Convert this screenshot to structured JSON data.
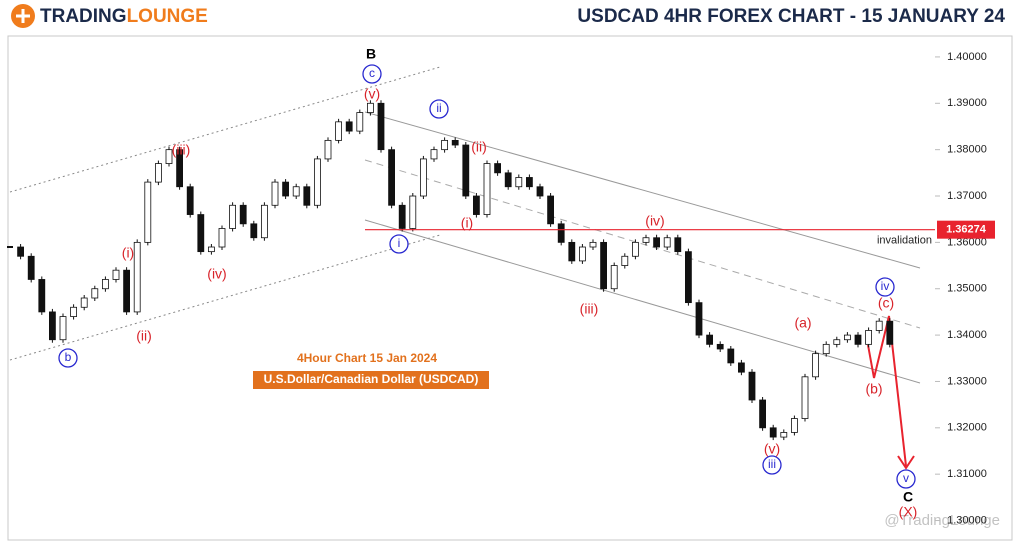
{
  "header": {
    "logo_a": "TRADING",
    "logo_b": "LOUNGE",
    "title": "USDCAD 4HR FOREX CHART - 15 JANUARY 24"
  },
  "chart_data": {
    "type": "candlestick",
    "subtitle": "4Hour Chart 15 Jan 2024",
    "instrument": "U.S.Dollar/Canadian Dollar (USDCAD)",
    "values": [
      1.359,
      1.357,
      1.352,
      1.345,
      1.339,
      1.344,
      1.346,
      1.348,
      1.35,
      1.352,
      1.354,
      1.345,
      1.36,
      1.373,
      1.377,
      1.38,
      1.372,
      1.366,
      1.358,
      1.359,
      1.363,
      1.368,
      1.364,
      1.361,
      1.368,
      1.373,
      1.37,
      1.372,
      1.368,
      1.378,
      1.382,
      1.386,
      1.384,
      1.388,
      1.39,
      1.38,
      1.368,
      1.363,
      1.37,
      1.378,
      1.38,
      1.382,
      1.381,
      1.37,
      1.366,
      1.377,
      1.375,
      1.372,
      1.374,
      1.372,
      1.37,
      1.364,
      1.36,
      1.356,
      1.359,
      1.36,
      1.35,
      1.355,
      1.357,
      1.36,
      1.361,
      1.359,
      1.361,
      1.358,
      1.347,
      1.34,
      1.338,
      1.337,
      1.334,
      1.332,
      1.326,
      1.32,
      1.318,
      1.319,
      1.322,
      1.331,
      1.336,
      1.338,
      1.339,
      1.34,
      1.338,
      1.341,
      1.343,
      1.338
    ],
    "up_color": "#ffffff",
    "down_color": "#111111",
    "ylim": [
      1.2958,
      1.4043
    ],
    "yticks": [
      {
        "value": 1.3,
        "label": "1.30000"
      },
      {
        "value": 1.31,
        "label": "1.31000"
      },
      {
        "value": 1.32,
        "label": "1.32000"
      },
      {
        "value": 1.33,
        "label": "1.33000"
      },
      {
        "value": 1.34,
        "label": "1.34000"
      },
      {
        "value": 1.35,
        "label": "1.35000"
      },
      {
        "value": 1.36,
        "label": "1.36000"
      },
      {
        "value": 1.37,
        "label": "1.37000"
      },
      {
        "value": 1.38,
        "label": "1.38000"
      },
      {
        "value": 1.39,
        "label": "1.39000"
      },
      {
        "value": 1.4,
        "label": "1.40000"
      }
    ],
    "price_line": {
      "value": 1.36274,
      "note": "invalidation",
      "color": "#e8232e"
    },
    "annotations": [
      {
        "text": "B",
        "color": "#000000",
        "circled": false
      },
      {
        "text": "c",
        "color": "#2a2ad0",
        "circled": true
      },
      {
        "text": "(v)",
        "color": "#d8232a",
        "circled": false
      },
      {
        "text": "(iii)",
        "color": "#d8232a",
        "circled": false
      },
      {
        "text": "(i)",
        "color": "#d8232a",
        "circled": false
      },
      {
        "text": "(iv)",
        "color": "#d8232a",
        "circled": false
      },
      {
        "text": "(ii)",
        "color": "#d8232a",
        "circled": false
      },
      {
        "text": "b",
        "color": "#2a2ad0",
        "circled": true
      },
      {
        "text": "ii",
        "color": "#2a2ad0",
        "circled": true
      },
      {
        "text": "(ii)",
        "color": "#d8232a",
        "circled": false
      },
      {
        "text": "(i)",
        "color": "#d8232a",
        "circled": false
      },
      {
        "text": "i",
        "color": "#2a2ad0",
        "circled": true
      },
      {
        "text": "(iv)",
        "color": "#d8232a",
        "circled": false
      },
      {
        "text": "(iii)",
        "color": "#d8232a",
        "circled": false
      },
      {
        "text": "(a)",
        "color": "#d8232a",
        "circled": false
      },
      {
        "text": "(b)",
        "color": "#d8232a",
        "circled": false
      },
      {
        "text": "(c)",
        "color": "#d8232a",
        "circled": false
      },
      {
        "text": "iv",
        "color": "#2a2ad0",
        "circled": true
      },
      {
        "text": "(v)",
        "color": "#d8232a",
        "circled": false
      },
      {
        "text": "iii",
        "color": "#2a2ad0",
        "circled": true
      },
      {
        "text": "v",
        "color": "#2a2ad0",
        "circled": true
      },
      {
        "text": "C",
        "color": "#000000",
        "circled": false
      },
      {
        "text": "(X)",
        "color": "#d8232a",
        "circled": false
      }
    ],
    "watermark": "@TradingLounge"
  }
}
